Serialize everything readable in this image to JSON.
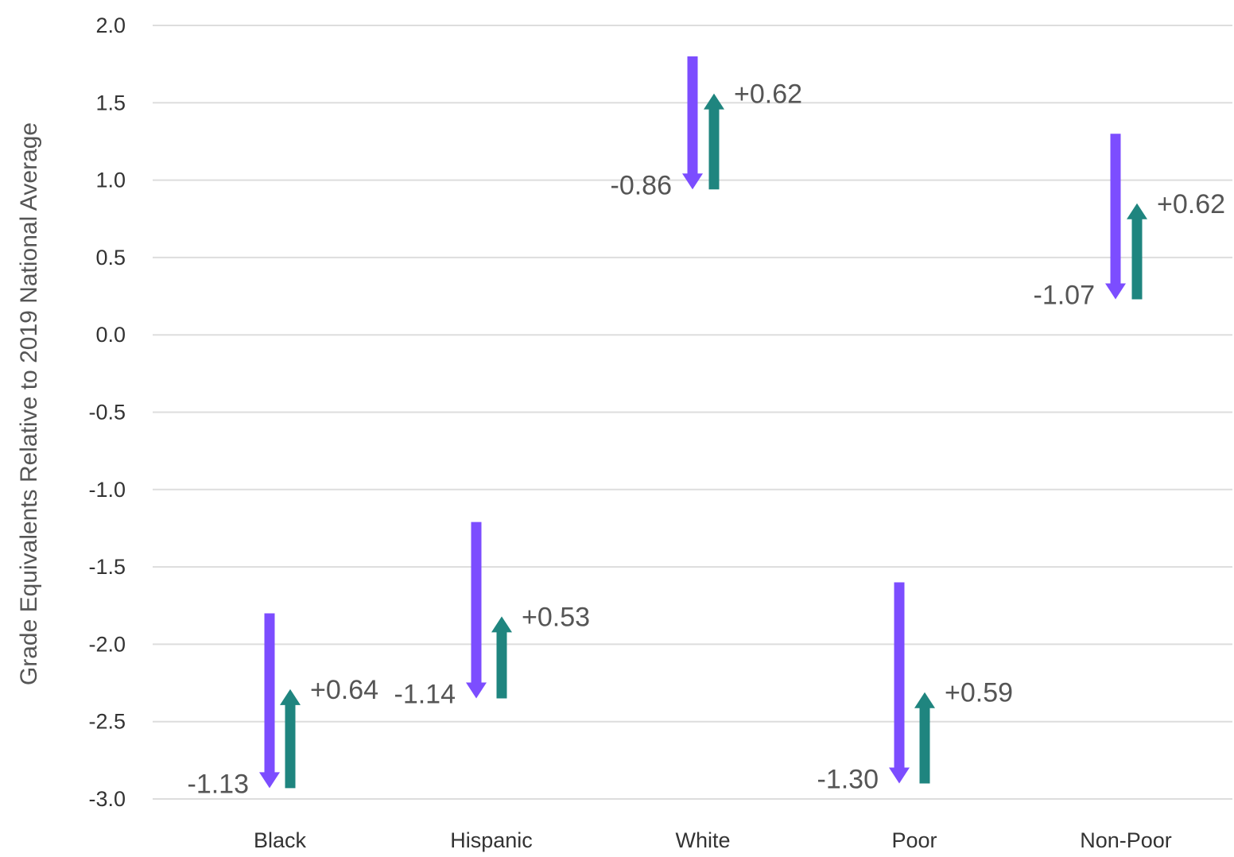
{
  "chart_data": {
    "type": "arrow-range",
    "ylabel": "Grade Equivalents Relative to 2019 National Average",
    "ylim": [
      -3.0,
      2.0
    ],
    "yticks": [
      2.0,
      1.5,
      1.0,
      0.5,
      0.0,
      -0.5,
      -1.0,
      -1.5,
      -2.0,
      -2.5,
      -3.0
    ],
    "ytick_labels": [
      "2.0",
      "1.5",
      "1.0",
      "0.5",
      "0.0",
      "-0.5",
      "-1.0",
      "-1.5",
      "-2.0",
      "-2.5",
      "-3.0"
    ],
    "grid": true,
    "categories": [
      "Black",
      "Hispanic",
      "White",
      "Poor",
      "Non-Poor"
    ],
    "colors": {
      "decline": "#7c4dff",
      "recovery": "#1f857f"
    },
    "series": [
      {
        "values": [
          {
            "start": -1.8,
            "end": -2.93
          },
          {
            "start": -1.21,
            "end": -2.35
          },
          {
            "start": 1.8,
            "end": 0.94
          },
          {
            "start": -1.6,
            "end": -2.9
          },
          {
            "start": 1.3,
            "end": 0.23
          }
        ],
        "labels": [
          "-1.13",
          "-1.14",
          "-0.86",
          "-1.30",
          "-1.07"
        ]
      },
      {
        "values": [
          {
            "start": -2.93,
            "end": -2.29
          },
          {
            "start": -2.35,
            "end": -1.82
          },
          {
            "start": 0.94,
            "end": 1.56
          },
          {
            "start": -2.9,
            "end": -2.31
          },
          {
            "start": 0.23,
            "end": 0.85
          }
        ],
        "labels": [
          "+0.64",
          "+0.53",
          "+0.62",
          "+0.59",
          "+0.62"
        ]
      }
    ]
  }
}
